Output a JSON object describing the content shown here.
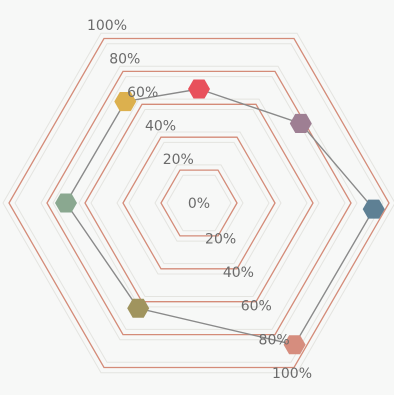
{
  "chart_data": {
    "type": "radar",
    "title": "",
    "axes_count": 7,
    "radial_range": [
      0,
      100
    ],
    "tick_labels_left": [
      "0%",
      "20%",
      "40%",
      "60%",
      "80%",
      "100%"
    ],
    "tick_labels_right": [
      "20%",
      "40%",
      "60%",
      "80%",
      "100%"
    ],
    "ring_values": [
      20,
      40,
      60,
      80,
      100
    ],
    "series": [
      {
        "values": [
          {
            "angle_deg": -90,
            "value": 60,
            "color": "#e8505b"
          },
          {
            "angle_deg": -38,
            "value": 68,
            "color": "#9e7f93"
          },
          {
            "angle_deg": 2,
            "value": 92,
            "color": "#5e8094"
          },
          {
            "angle_deg": 56,
            "value": 90,
            "color": "#d68d7e"
          },
          {
            "angle_deg": 120,
            "value": 64,
            "color": "#a0945e"
          },
          {
            "angle_deg": 180,
            "value": 70,
            "color": "#8aa890"
          },
          {
            "angle_deg": 234,
            "value": 66,
            "color": "#dcb04e"
          }
        ]
      }
    ],
    "grid": true,
    "legend": "none"
  }
}
